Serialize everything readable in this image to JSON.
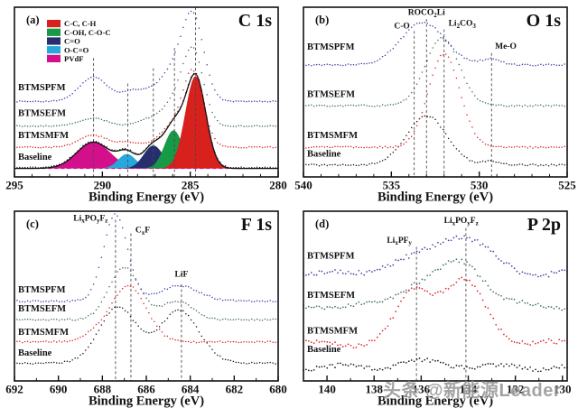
{
  "watermark": {
    "text": "头条 @新能源Leader"
  },
  "chart_data": [
    {
      "type": "line",
      "panel": "a",
      "letter": "(a)",
      "title": "C 1s",
      "xlabel": "Binding Energy (eV)",
      "x_left": 295,
      "x_right": 280,
      "major_ticks": [
        295,
        290,
        285,
        280
      ],
      "minor_step": 1,
      "legend": [
        {
          "label": "C-C, C-H",
          "color": "#d8201d"
        },
        {
          "label": "C-OH, C-O-C",
          "color": "#169a45"
        },
        {
          "label": "C=O",
          "color": "#262e6e"
        },
        {
          "label": "O-C=O",
          "color": "#27a7dc"
        },
        {
          "label": "PVdF",
          "color": "#d40f8c"
        }
      ],
      "fit_base": 0.05,
      "fit_peaks": [
        {
          "name": "PVdF",
          "color": "#d40f8c",
          "center": 290.5,
          "sigma": 0.95,
          "amp": 0.155
        },
        {
          "name": "O-C=O",
          "color": "#27a7dc",
          "center": 288.6,
          "sigma": 0.5,
          "amp": 0.085
        },
        {
          "name": "C=O",
          "color": "#262e6e",
          "center": 287.1,
          "sigma": 0.55,
          "amp": 0.135
        },
        {
          "name": "C-OH, C-O-C",
          "color": "#169a45",
          "center": 285.95,
          "sigma": 0.52,
          "amp": 0.225
        },
        {
          "name": "C-C, C-H",
          "color": "#d8201d",
          "center": 284.7,
          "sigma": 0.58,
          "amp": 0.545
        }
      ],
      "guides": [
        {
          "x": 290.5,
          "top": 0.7
        },
        {
          "x": 288.55,
          "top": 0.55
        },
        {
          "x": 287.1,
          "top": 0.64
        },
        {
          "x": 285.9,
          "top": 0.76
        },
        {
          "x": 284.7,
          "top": 1.0
        }
      ],
      "annotations": [],
      "series": [
        {
          "name": "Baseline",
          "color": "#151515",
          "offset": 0.055,
          "label_y": 0.1,
          "noise": 0.003,
          "seed": 1,
          "peaks": [
            [
              290.5,
              0.95,
              0.155
            ],
            [
              288.6,
              0.5,
              0.085
            ],
            [
              287.1,
              0.55,
              0.135
            ],
            [
              285.95,
              0.52,
              0.225
            ],
            [
              284.7,
              0.58,
              0.545
            ]
          ]
        },
        {
          "name": "BTMSMFM",
          "color": "#e01f1f",
          "offset": 0.175,
          "label_y": 0.23,
          "noise": 0.004,
          "seed": 2,
          "peaks": [
            [
              290.5,
              0.8,
              0.07
            ],
            [
              288.5,
              0.6,
              0.03
            ],
            [
              286.2,
              0.7,
              0.1
            ],
            [
              284.85,
              0.6,
              0.44
            ]
          ]
        },
        {
          "name": "BTMSEFM",
          "color": "#3f6b5e",
          "offset": 0.3,
          "label_y": 0.36,
          "noise": 0.003,
          "seed": 3,
          "peaks": [
            [
              290.5,
              0.8,
              0.045
            ],
            [
              287.0,
              0.8,
              0.05
            ],
            [
              285.9,
              0.6,
              0.1
            ],
            [
              284.85,
              0.6,
              0.44
            ]
          ]
        },
        {
          "name": "BTMSPFM",
          "color": "#3a3f9e",
          "offset": 0.445,
          "label_y": 0.51,
          "noise": 0.003,
          "seed": 4,
          "peaks": [
            [
              290.5,
              0.8,
              0.145
            ],
            [
              288.4,
              0.55,
              0.05
            ],
            [
              286.9,
              0.8,
              0.08
            ],
            [
              285.9,
              0.6,
              0.12
            ],
            [
              284.85,
              0.62,
              0.5
            ]
          ]
        }
      ]
    },
    {
      "type": "line",
      "panel": "b",
      "letter": "(b)",
      "title": "O 1s",
      "xlabel": "Binding Energy (eV)",
      "x_left": 540,
      "x_right": 525,
      "major_ticks": [
        540,
        535,
        530,
        525
      ],
      "minor_step": 1,
      "legend": [],
      "guides": [
        {
          "x": 533.7,
          "top": 0.86
        },
        {
          "x": 533.0,
          "top": 0.93
        },
        {
          "x": 532.0,
          "top": 0.87
        },
        {
          "x": 529.3,
          "top": 0.73
        }
      ],
      "annotations": [
        {
          "text": "C-O",
          "x": 533.95,
          "y": 0.875,
          "anchor": "end"
        },
        {
          "text": "ROCO_{2}Li",
          "x": 533.0,
          "y": 0.955,
          "anchor": "middle"
        },
        {
          "text": "Li_{2}CO_{3}",
          "x": 531.75,
          "y": 0.89,
          "anchor": "start"
        },
        {
          "text": "Me-O",
          "x": 529.1,
          "y": 0.755,
          "anchor": "start"
        }
      ],
      "series": [
        {
          "name": "Baseline",
          "color": "#151515",
          "offset": 0.07,
          "label_y": 0.12,
          "noise": 0.005,
          "seed": 5,
          "peaks": [
            [
              533.0,
              1.15,
              0.29
            ],
            [
              529.3,
              0.5,
              0.02
            ]
          ]
        },
        {
          "name": "BTMSMFM",
          "color": "#e01f1f",
          "offset": 0.175,
          "label_y": 0.23,
          "noise": 0.005,
          "seed": 6,
          "peaks": [
            [
              532.0,
              0.9,
              0.55
            ]
          ]
        },
        {
          "name": "BTMSEFM",
          "color": "#3f6b5e",
          "offset": 0.42,
          "label_y": 0.47,
          "noise": 0.005,
          "seed": 7,
          "peaks": [
            [
              532.1,
              0.95,
              0.4
            ]
          ]
        },
        {
          "name": "BTMSPFM",
          "color": "#3a3f9e",
          "offset": 0.66,
          "label_y": 0.75,
          "noise": 0.005,
          "seed": 8,
          "peaks": [
            [
              533.2,
              1.25,
              0.25
            ],
            [
              529.3,
              0.55,
              0.035
            ]
          ]
        }
      ]
    },
    {
      "type": "line",
      "panel": "c",
      "letter": "(c)",
      "title": "F 1s",
      "xlabel": "Binding Energy (eV)",
      "x_left": 692,
      "x_right": 680,
      "major_ticks": [
        692,
        690,
        688,
        686,
        684,
        682,
        680
      ],
      "minor_step": 1,
      "legend": [],
      "guides": [
        {
          "x": 687.4,
          "top": 0.95
        },
        {
          "x": 686.7,
          "top": 0.87
        },
        {
          "x": 684.4,
          "top": 0.57
        }
      ],
      "annotations": [
        {
          "text": "Li_{x}PO_{y}F_{z}",
          "x": 687.75,
          "y": 0.945,
          "anchor": "end"
        },
        {
          "text": "C_{x}F",
          "x": 686.5,
          "y": 0.875,
          "anchor": "start"
        },
        {
          "text": "LiF",
          "x": 684.4,
          "y": 0.615,
          "anchor": "middle"
        }
      ],
      "series": [
        {
          "name": "Baseline",
          "color": "#151515",
          "offset": 0.105,
          "label_y": 0.15,
          "noise": 0.005,
          "seed": 9,
          "peaks": [
            [
              687.3,
              0.85,
              0.33
            ],
            [
              684.5,
              0.9,
              0.31
            ]
          ]
        },
        {
          "name": "BTMSMFM",
          "color": "#e01f1f",
          "offset": 0.23,
          "label_y": 0.27,
          "noise": 0.005,
          "seed": 10,
          "peaks": [
            [
              686.8,
              0.8,
              0.33
            ],
            [
              688.3,
              0.55,
              0.04
            ]
          ]
        },
        {
          "name": "BTMSEFM",
          "color": "#3f6b5e",
          "offset": 0.36,
          "label_y": 0.41,
          "noise": 0.005,
          "seed": 11,
          "peaks": [
            [
              687.0,
              0.7,
              0.31
            ],
            [
              684.6,
              0.7,
              0.11
            ]
          ]
        },
        {
          "name": "BTMSPFM",
          "color": "#3a3f9e",
          "offset": 0.47,
          "label_y": 0.52,
          "noise": 0.005,
          "seed": 12,
          "peaks": [
            [
              687.4,
              0.55,
              0.51
            ],
            [
              684.5,
              0.9,
              0.09
            ]
          ]
        }
      ]
    },
    {
      "type": "line",
      "panel": "d",
      "letter": "(d)",
      "title": "P 2p",
      "xlabel": "Binding Energy (eV)",
      "x_left": 141.0,
      "x_right": 129.8,
      "major_ticks": [
        140,
        138,
        136,
        134,
        132,
        130
      ],
      "minor_step": 1,
      "legend": [],
      "guides": [
        {
          "x": 136.2,
          "top": 0.79
        },
        {
          "x": 134.1,
          "top": 0.9
        }
      ],
      "annotations": [
        {
          "text": "Li_{x}PF_{y}",
          "x": 136.4,
          "y": 0.815,
          "anchor": "end"
        },
        {
          "text": "Li_{x}PO_{y}F_{z}",
          "x": 134.3,
          "y": 0.93,
          "anchor": "middle"
        }
      ],
      "series": [
        {
          "name": "Baseline",
          "color": "#151515",
          "offset": 0.08,
          "label_y": 0.17,
          "noise": 0.012,
          "seed": 13,
          "peaks": [
            [
              135.8,
              1.2,
              0.03
            ]
          ]
        },
        {
          "name": "BTMSMFM",
          "color": "#e01f1f",
          "offset": 0.22,
          "label_y": 0.28,
          "noise": 0.013,
          "seed": 14,
          "peaks": [
            [
              136.3,
              0.75,
              0.3
            ],
            [
              134.2,
              0.95,
              0.36
            ]
          ]
        },
        {
          "name": "BTMSEFM",
          "color": "#3f6b5e",
          "offset": 0.44,
          "label_y": 0.49,
          "noise": 0.013,
          "seed": 15,
          "peaks": [
            [
              136.3,
              0.8,
              0.1
            ],
            [
              134.3,
              1.0,
              0.26
            ]
          ]
        },
        {
          "name": "BTMSPFM",
          "color": "#3a3f9e",
          "offset": 0.63,
          "label_y": 0.72,
          "noise": 0.015,
          "seed": 16,
          "peaks": [
            [
              137.0,
              1.0,
              0.05
            ],
            [
              134.4,
              1.2,
              0.23
            ]
          ]
        }
      ]
    }
  ]
}
